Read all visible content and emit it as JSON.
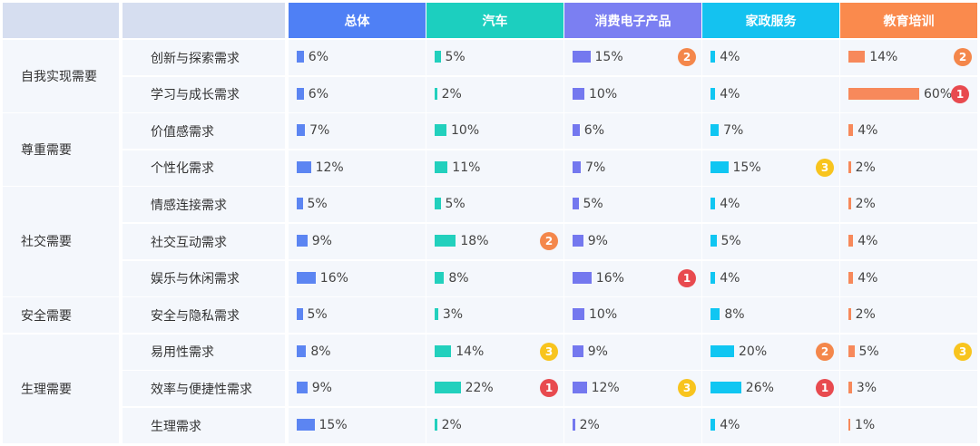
{
  "chart_data": {
    "type": "table",
    "columns": [
      "总体",
      "汽车",
      "消费电子产品",
      "家政服务",
      "教育培训"
    ],
    "column_colors": [
      "#4f80f5",
      "#1ccfbf",
      "#7b7ff2",
      "#14c2f0",
      "#fa8a4d"
    ],
    "bar_colors": [
      "#5c85f2",
      "#22d0bd",
      "#7478ef",
      "#10c6f2",
      "#f7895b"
    ],
    "value_max": 60,
    "groups": [
      {
        "label": "自我实现需要",
        "rows": 2
      },
      {
        "label": "尊重需要",
        "rows": 2
      },
      {
        "label": "社交需要",
        "rows": 3
      },
      {
        "label": "安全需要",
        "rows": 1
      },
      {
        "label": "生理需要",
        "rows": 3
      }
    ],
    "rows": [
      {
        "label": "创新与探索需求",
        "values": [
          6,
          5,
          15,
          4,
          14
        ],
        "ranks": [
          null,
          null,
          2,
          null,
          2
        ]
      },
      {
        "label": "学习与成长需求",
        "values": [
          6,
          2,
          10,
          4,
          60
        ],
        "ranks": [
          null,
          null,
          null,
          null,
          1
        ]
      },
      {
        "label": "价值感需求",
        "values": [
          7,
          10,
          6,
          7,
          4
        ],
        "ranks": [
          null,
          null,
          null,
          null,
          null
        ]
      },
      {
        "label": "个性化需求",
        "values": [
          12,
          11,
          7,
          15,
          2
        ],
        "ranks": [
          null,
          null,
          null,
          3,
          null
        ]
      },
      {
        "label": "情感连接需求",
        "values": [
          5,
          5,
          5,
          4,
          2
        ],
        "ranks": [
          null,
          null,
          null,
          null,
          null
        ]
      },
      {
        "label": "社交互动需求",
        "values": [
          9,
          18,
          9,
          5,
          4
        ],
        "ranks": [
          null,
          2,
          null,
          null,
          null
        ]
      },
      {
        "label": "娱乐与休闲需求",
        "values": [
          16,
          8,
          16,
          4,
          4
        ],
        "ranks": [
          null,
          null,
          1,
          null,
          null
        ]
      },
      {
        "label": "安全与隐私需求",
        "values": [
          5,
          3,
          10,
          8,
          2
        ],
        "ranks": [
          null,
          null,
          null,
          null,
          null
        ]
      },
      {
        "label": "易用性需求",
        "values": [
          8,
          14,
          9,
          20,
          5
        ],
        "ranks": [
          null,
          3,
          null,
          2,
          3
        ]
      },
      {
        "label": "效率与便捷性需求",
        "values": [
          9,
          22,
          12,
          26,
          3
        ],
        "ranks": [
          null,
          1,
          3,
          1,
          null
        ]
      },
      {
        "label": "生理需求",
        "values": [
          15,
          2,
          2,
          4,
          1
        ],
        "ranks": [
          null,
          null,
          null,
          null,
          null
        ]
      }
    ],
    "rank_colors": {
      "1": "#e84a4f",
      "2": "#f4874b",
      "3": "#f8c41e"
    },
    "value_suffix": "%"
  }
}
